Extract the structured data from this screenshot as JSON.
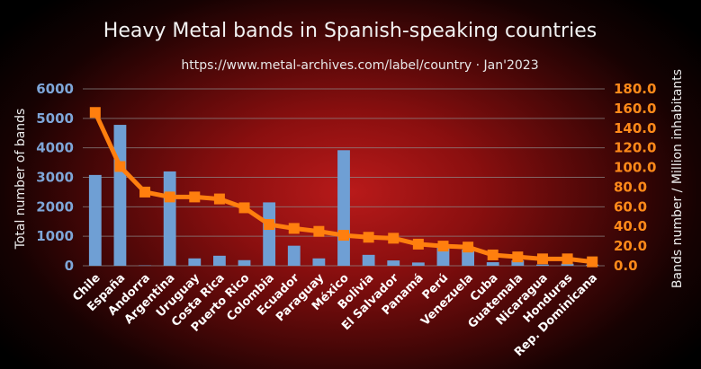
{
  "chart_data": {
    "type": "bar",
    "title": "Heavy Metal bands in Spanish-speaking countries",
    "subtitle": "https://www.metal-archives.com/label/country  ·  Jan'2023",
    "ylabel": "Total number of bands",
    "y2label": "Bands number / Million inhabitants",
    "categories": [
      "Chile",
      "España",
      "Andorra",
      "Argentina",
      "Uruguay",
      "Costa Rica",
      "Puerto Rico",
      "Colombia",
      "Ecuador",
      "Paraguay",
      "México",
      "Bolivia",
      "El Salvador",
      "Panamá",
      "Perú",
      "Venezuela",
      "Cuba",
      "Guatemala",
      "Nicaragua",
      "Honduras",
      "Rep. Dominicana"
    ],
    "ylim": [
      0,
      6000
    ],
    "y2lim": [
      0,
      180
    ],
    "yticks": [
      "0",
      "1000",
      "2000",
      "3000",
      "4000",
      "5000",
      "6000"
    ],
    "y2ticks": [
      "0.0",
      "20.0",
      "40.0",
      "60.0",
      "80.0",
      "100.0",
      "120.0",
      "140.0",
      "160.0",
      "180.0"
    ],
    "grid": true,
    "series": [
      {
        "type": "bar",
        "axis": "left",
        "values": [
          3080,
          4780,
          12,
          3200,
          250,
          340,
          190,
          2150,
          680,
          250,
          3920,
          370,
          180,
          110,
          650,
          550,
          120,
          180,
          40,
          70,
          40
        ]
      },
      {
        "type": "line",
        "axis": "right",
        "values": [
          156,
          101,
          75,
          70,
          70,
          68,
          59,
          42,
          38,
          35,
          31,
          29,
          28,
          22,
          20,
          19,
          11,
          9,
          7,
          7,
          4
        ]
      }
    ],
    "colors": {
      "bar": "#6f9fd4",
      "line": "#ff7f0e",
      "left_axis": "#7ea6d8",
      "right_axis": "#ff8a1a"
    }
  }
}
